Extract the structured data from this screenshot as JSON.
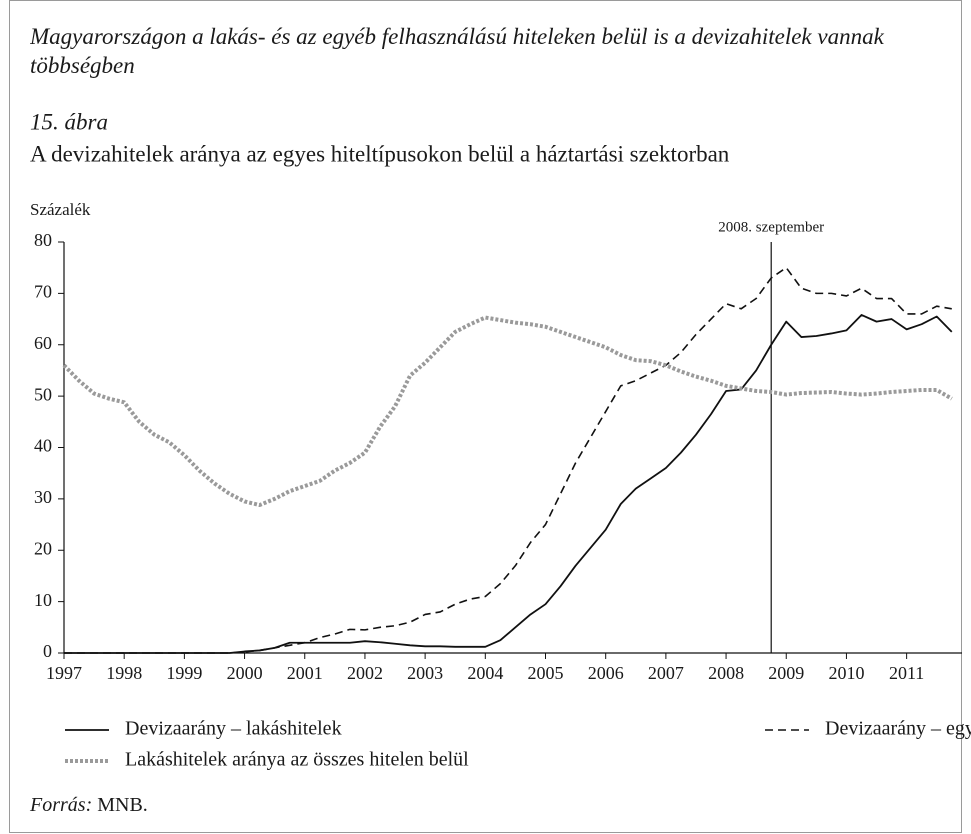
{
  "chart_data": {
    "type": "line",
    "heading": "Magyarországon a lakás- és az egyéb felhasználású hiteleken belül is a devizahitelek vannak többségben",
    "figure_label": "15. ábra",
    "title": "A devizahitelek aránya az egyes hiteltípusokon belül a háztartási szektorban",
    "y_axis_label": "Százalék",
    "source_label": "Forrás:",
    "source": "MNB.",
    "annotation": {
      "text": "2008. szeptember",
      "x": 2008.75
    },
    "xlim": [
      1997,
      2011.92
    ],
    "xticks": [
      1997,
      1998,
      1999,
      2000,
      2001,
      2002,
      2003,
      2004,
      2005,
      2006,
      2007,
      2008,
      2009,
      2010,
      2011
    ],
    "ylim": [
      0,
      80
    ],
    "yticks": [
      0,
      10,
      20,
      30,
      40,
      50,
      60,
      70,
      80
    ],
    "x": [
      1997,
      1997.25,
      1997.5,
      1997.75,
      1998,
      1998.25,
      1998.5,
      1998.75,
      1999,
      1999.25,
      1999.5,
      1999.75,
      2000,
      2000.25,
      2000.5,
      2000.75,
      2001,
      2001.25,
      2001.5,
      2001.75,
      2002,
      2002.25,
      2002.5,
      2002.75,
      2003,
      2003.25,
      2003.5,
      2003.75,
      2004,
      2004.25,
      2004.5,
      2004.75,
      2005,
      2005.25,
      2005.5,
      2005.75,
      2006,
      2006.25,
      2006.5,
      2006.75,
      2007,
      2007.25,
      2007.5,
      2007.75,
      2008,
      2008.25,
      2008.5,
      2008.75,
      2009,
      2009.25,
      2009.5,
      2009.75,
      2010,
      2010.25,
      2010.5,
      2010.75,
      2011,
      2011.25,
      2011.5,
      2011.75
    ],
    "series": [
      {
        "name": "Devizaarány – lakáshitelek",
        "color": "#111111",
        "style": "solid",
        "values": [
          0,
          0,
          0,
          0,
          0,
          0,
          0,
          0,
          0,
          0,
          0,
          0,
          0.3,
          0.5,
          1,
          2,
          2,
          2,
          2,
          2,
          2.3,
          2.1,
          1.8,
          1.5,
          1.3,
          1.3,
          1.2,
          1.2,
          1.2,
          2.5,
          5,
          7.5,
          9.5,
          13,
          17,
          20.5,
          24,
          29,
          32,
          34,
          36,
          39,
          42.5,
          46.5,
          51,
          51.3,
          55,
          60,
          64.5,
          61.5,
          61.7,
          62.2,
          62.8,
          65.8,
          64.5,
          65,
          63,
          64,
          65.5,
          62.5
        ]
      },
      {
        "name": "Devizaarány – egyéb hitelek",
        "color": "#111111",
        "style": "dashed",
        "values": [
          0,
          0,
          0,
          0,
          0,
          0,
          0,
          0,
          0,
          0,
          0,
          0,
          0.2,
          0.5,
          1,
          1.5,
          2,
          3,
          3.7,
          4.6,
          4.5,
          5,
          5.3,
          6,
          7.5,
          8,
          9.5,
          10.5,
          11,
          13.5,
          17,
          21.5,
          25,
          31,
          37,
          42,
          47,
          52,
          53,
          54.5,
          56,
          58.5,
          62,
          65,
          68,
          67,
          69,
          73,
          75,
          71,
          70,
          70,
          69.5,
          71,
          69,
          69,
          66,
          66,
          67.5,
          67
        ]
      },
      {
        "name": "Lakáshitelek aránya az összes hitelen belül",
        "color": "#9a9a9a",
        "style": "dotted",
        "values": [
          56,
          53,
          50.5,
          49.5,
          48.8,
          45,
          42.5,
          41,
          38.5,
          35.5,
          33,
          31,
          29.5,
          28.8,
          30,
          31.5,
          32.5,
          33.5,
          35.5,
          37,
          39,
          44,
          48,
          54,
          56.5,
          59.5,
          62.5,
          64,
          65.3,
          64.8,
          64.3,
          64,
          63.5,
          62.5,
          61.5,
          60.5,
          59.5,
          58,
          57,
          56.8,
          56,
          54.8,
          53.8,
          53,
          52,
          51.5,
          51,
          50.8,
          50.3,
          50.6,
          50.7,
          50.8,
          50.5,
          50.3,
          50.5,
          50.8,
          51,
          51.2,
          51.2,
          49.5
        ]
      }
    ]
  }
}
